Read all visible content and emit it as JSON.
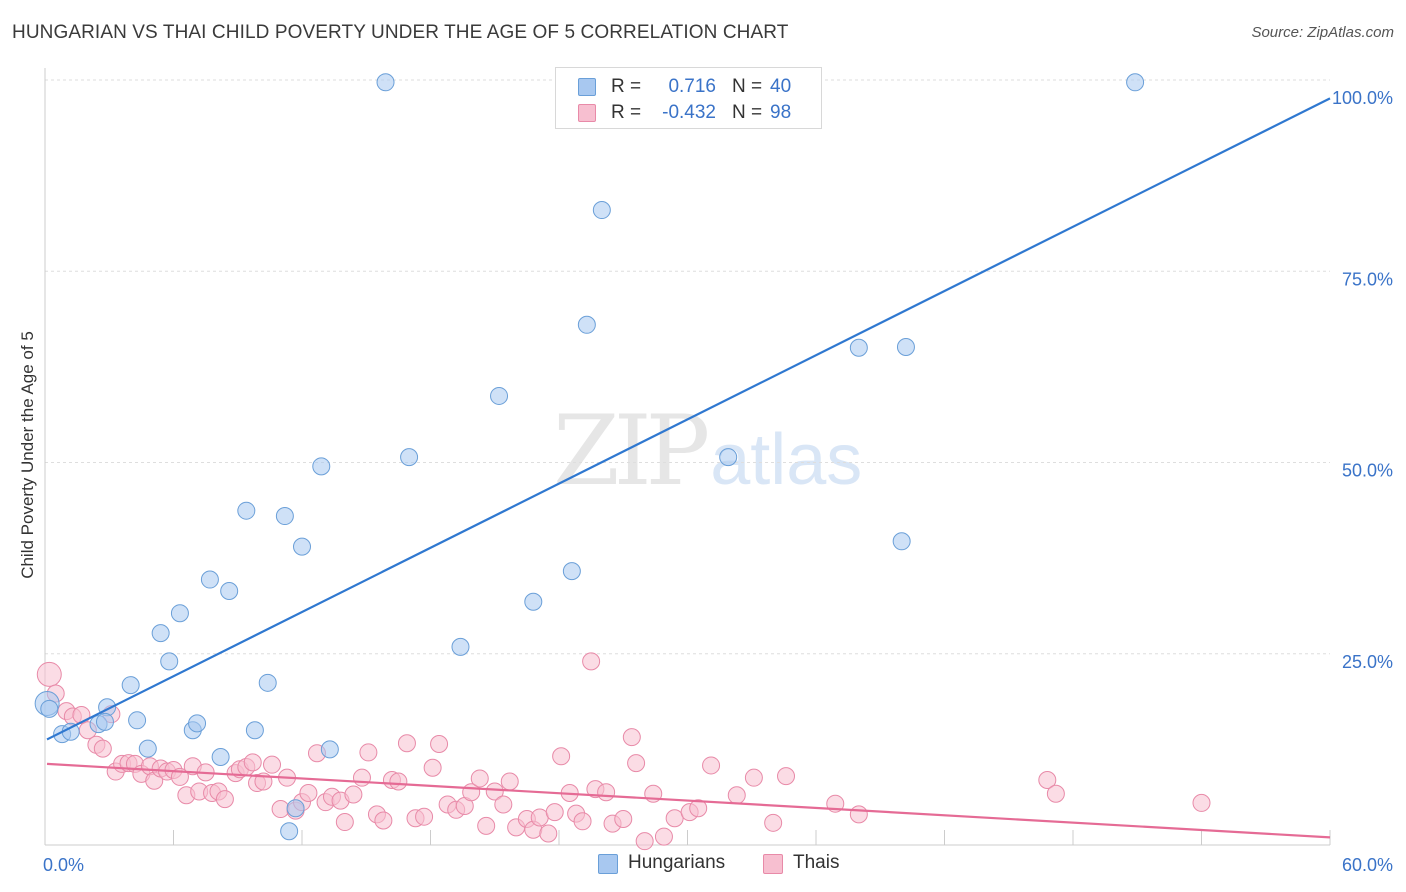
{
  "title": "HUNGARIAN VS THAI CHILD POVERTY UNDER THE AGE OF 5 CORRELATION CHART",
  "source": "Source: ZipAtlas.com",
  "watermark": {
    "zip": "ZIP",
    "atlas": "atlas"
  },
  "legend": {
    "rows": [
      {
        "r_label": "R =",
        "r_value": "0.716",
        "n_label": "N =",
        "n_value": "40",
        "color": "#a8c8f0",
        "border": "#6a9fd8"
      },
      {
        "r_label": "R =",
        "r_value": "-0.432",
        "n_label": "N =",
        "n_value": "98",
        "color": "#f7bfd0",
        "border": "#e88aa8"
      }
    ]
  },
  "bottom_legend": [
    {
      "label": "Hungarians",
      "color": "#a8c8f0",
      "border": "#6a9fd8"
    },
    {
      "label": "Thais",
      "color": "#f7bfd0",
      "border": "#e88aa8"
    }
  ],
  "chart_data": {
    "type": "scatter",
    "title": "HUNGARIAN VS THAI CHILD POVERTY UNDER THE AGE OF 5 CORRELATION CHART",
    "xlabel": "",
    "ylabel": "Child Poverty Under the Age of 5",
    "xlim": [
      0,
      60
    ],
    "ylim": [
      0,
      100
    ],
    "x_tick_labels": [
      {
        "value": 0,
        "label": "0.0%"
      },
      {
        "value": 60,
        "label": "60.0%"
      }
    ],
    "y_tick_labels": [
      {
        "value": 25,
        "label": "25.0%"
      },
      {
        "value": 50,
        "label": "50.0%"
      },
      {
        "value": 75,
        "label": "75.0%"
      },
      {
        "value": 100,
        "label": "100.0%"
      }
    ],
    "grid": true,
    "series": [
      {
        "name": "Hungarians",
        "color": "#a8c8f0",
        "stroke": "#6a9fd8",
        "trend": {
          "x": [
            0,
            60
          ],
          "y": [
            13.8,
            97.6
          ],
          "color": "#2f78d0"
        },
        "points": [
          [
            0.1,
            18.5
          ],
          [
            0.8,
            14.5
          ],
          [
            1.2,
            14.8
          ],
          [
            2.5,
            15.8
          ],
          [
            2.9,
            18.0
          ],
          [
            2.8,
            16.1
          ],
          [
            4.0,
            20.9
          ],
          [
            4.3,
            16.3
          ],
          [
            4.8,
            12.6
          ],
          [
            5.4,
            27.7
          ],
          [
            5.8,
            24.0
          ],
          [
            6.3,
            30.3
          ],
          [
            6.9,
            15.0
          ],
          [
            7.1,
            15.9
          ],
          [
            7.7,
            34.7
          ],
          [
            8.2,
            11.5
          ],
          [
            8.6,
            33.2
          ],
          [
            9.4,
            43.7
          ],
          [
            9.8,
            15.0
          ],
          [
            10.4,
            21.2
          ],
          [
            11.2,
            43.0
          ],
          [
            11.4,
            1.8
          ],
          [
            11.7,
            4.8
          ],
          [
            12.0,
            39.0
          ],
          [
            12.9,
            49.5
          ],
          [
            13.3,
            12.5
          ],
          [
            15.9,
            99.7
          ],
          [
            17.0,
            50.7
          ],
          [
            19.4,
            25.9
          ],
          [
            21.2,
            58.7
          ],
          [
            22.8,
            31.8
          ],
          [
            24.6,
            35.8
          ],
          [
            25.3,
            68.0
          ],
          [
            26.0,
            83.0
          ],
          [
            31.9,
            50.7
          ],
          [
            38.0,
            65.0
          ],
          [
            40.0,
            39.7
          ],
          [
            40.2,
            65.1
          ],
          [
            50.9,
            99.7
          ],
          [
            0.2,
            17.8
          ]
        ]
      },
      {
        "name": "Thais",
        "color": "#f7bfd0",
        "stroke": "#e88aa8",
        "trend": {
          "x": [
            0,
            60
          ],
          "y": [
            10.6,
            1.0
          ],
          "color": "#e56b95"
        },
        "points": [
          [
            0.2,
            22.3
          ],
          [
            0.5,
            19.8
          ],
          [
            1.0,
            17.5
          ],
          [
            1.3,
            16.8
          ],
          [
            1.7,
            17.0
          ],
          [
            2.0,
            15.0
          ],
          [
            2.4,
            13.1
          ],
          [
            2.7,
            12.6
          ],
          [
            3.1,
            17.1
          ],
          [
            3.3,
            9.6
          ],
          [
            3.6,
            10.6
          ],
          [
            3.9,
            10.7
          ],
          [
            4.2,
            10.6
          ],
          [
            4.5,
            9.3
          ],
          [
            4.9,
            10.3
          ],
          [
            5.1,
            8.4
          ],
          [
            5.4,
            10.0
          ],
          [
            5.7,
            9.6
          ],
          [
            6.0,
            9.8
          ],
          [
            6.3,
            8.9
          ],
          [
            6.6,
            6.5
          ],
          [
            6.9,
            10.3
          ],
          [
            7.2,
            7.0
          ],
          [
            7.5,
            9.5
          ],
          [
            7.8,
            6.8
          ],
          [
            8.1,
            7.0
          ],
          [
            8.4,
            6.0
          ],
          [
            8.9,
            9.4
          ],
          [
            9.1,
            9.9
          ],
          [
            9.4,
            10.2
          ],
          [
            9.7,
            10.8
          ],
          [
            9.9,
            8.1
          ],
          [
            10.2,
            8.3
          ],
          [
            10.6,
            10.5
          ],
          [
            11.0,
            4.7
          ],
          [
            11.3,
            8.8
          ],
          [
            11.7,
            4.5
          ],
          [
            12.0,
            5.6
          ],
          [
            12.3,
            6.8
          ],
          [
            12.7,
            12.0
          ],
          [
            13.1,
            5.6
          ],
          [
            13.4,
            6.3
          ],
          [
            13.8,
            5.8
          ],
          [
            14.0,
            3.0
          ],
          [
            14.4,
            6.6
          ],
          [
            14.8,
            8.8
          ],
          [
            15.1,
            12.1
          ],
          [
            15.5,
            4.0
          ],
          [
            15.8,
            3.2
          ],
          [
            16.2,
            8.5
          ],
          [
            16.5,
            8.3
          ],
          [
            16.9,
            13.3
          ],
          [
            17.3,
            3.5
          ],
          [
            17.7,
            3.7
          ],
          [
            18.1,
            10.1
          ],
          [
            18.4,
            13.2
          ],
          [
            18.8,
            5.3
          ],
          [
            19.2,
            4.6
          ],
          [
            19.6,
            5.1
          ],
          [
            19.9,
            6.9
          ],
          [
            20.3,
            8.7
          ],
          [
            20.6,
            2.5
          ],
          [
            21.0,
            7.0
          ],
          [
            21.4,
            5.3
          ],
          [
            21.7,
            8.3
          ],
          [
            22.0,
            2.3
          ],
          [
            22.5,
            3.4
          ],
          [
            22.8,
            2.0
          ],
          [
            23.1,
            3.6
          ],
          [
            23.5,
            1.5
          ],
          [
            23.8,
            4.3
          ],
          [
            24.1,
            11.6
          ],
          [
            24.5,
            6.8
          ],
          [
            24.8,
            4.1
          ],
          [
            25.1,
            3.1
          ],
          [
            25.5,
            24.0
          ],
          [
            25.7,
            7.3
          ],
          [
            26.2,
            6.9
          ],
          [
            26.5,
            2.8
          ],
          [
            27.0,
            3.4
          ],
          [
            27.4,
            14.1
          ],
          [
            27.6,
            10.7
          ],
          [
            28.0,
            0.5
          ],
          [
            28.4,
            6.7
          ],
          [
            28.9,
            1.1
          ],
          [
            29.4,
            3.5
          ],
          [
            30.1,
            4.3
          ],
          [
            30.5,
            4.8
          ],
          [
            31.1,
            10.4
          ],
          [
            32.3,
            6.5
          ],
          [
            33.1,
            8.8
          ],
          [
            34.0,
            2.9
          ],
          [
            34.6,
            9.0
          ],
          [
            36.9,
            5.4
          ],
          [
            38.0,
            4.0
          ],
          [
            46.8,
            8.5
          ],
          [
            47.2,
            6.7
          ],
          [
            54.0,
            5.5
          ]
        ]
      }
    ]
  }
}
